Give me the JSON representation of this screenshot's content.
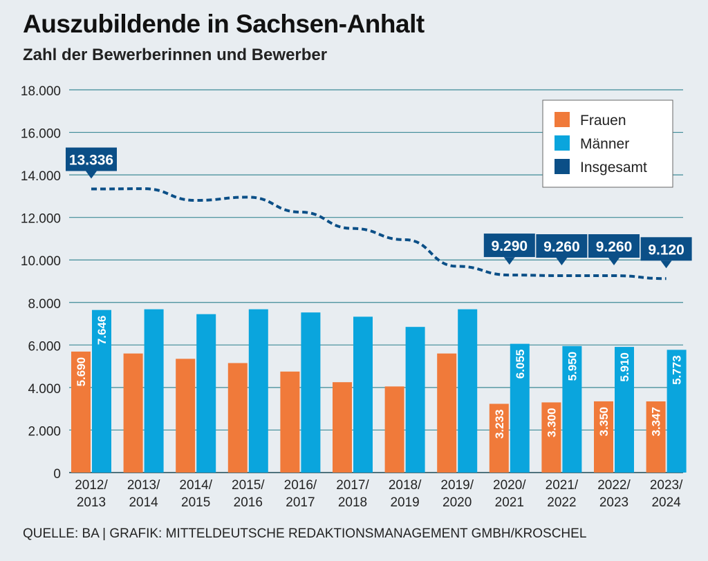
{
  "title": "Auszubildende in Sachsen-Anhalt",
  "subtitle": "Zahl der Bewerberinnen und Bewerber",
  "source": "QUELLE: BA | GRAFIK: MITTELDEUTSCHE REDAKTIONSMANAGEMENT GMBH/KROSCHEL",
  "colors": {
    "frauen": "#f07a3a",
    "maenner": "#0aa5dd",
    "insgesamt": "#0b4f87",
    "grid": "#3c8a96"
  },
  "chart_data": {
    "type": "bar",
    "ylim": [
      0,
      18000
    ],
    "yticks": [
      "0",
      "2.000",
      "4.000",
      "6.000",
      "8.000",
      "10.000",
      "12.000",
      "14.000",
      "16.000",
      "18.000"
    ],
    "categories": [
      [
        "2012/",
        "2013"
      ],
      [
        "2013/",
        "2014"
      ],
      [
        "2014/",
        "2015"
      ],
      [
        "2015/",
        "2016"
      ],
      [
        "2016/",
        "2017"
      ],
      [
        "2017/",
        "2018"
      ],
      [
        "2018/",
        "2019"
      ],
      [
        "2019/",
        "2020"
      ],
      [
        "2020/",
        "2021"
      ],
      [
        "2021/",
        "2022"
      ],
      [
        "2022/",
        "2023"
      ],
      [
        "2023/",
        "2024"
      ]
    ],
    "series": [
      {
        "name": "Frauen",
        "values": [
          5690,
          5600,
          5350,
          5150,
          4750,
          4250,
          4050,
          5600,
          3233,
          3300,
          3350,
          3347
        ]
      },
      {
        "name": "Männer",
        "values": [
          7646,
          7680,
          7450,
          7680,
          7530,
          7330,
          6850,
          7680,
          6055,
          5950,
          5910,
          5773
        ]
      },
      {
        "name": "Insgesamt",
        "type": "line",
        "values": [
          13336,
          13350,
          12800,
          12950,
          12250,
          11480,
          10950,
          9700,
          9290,
          9260,
          9260,
          9120
        ]
      }
    ],
    "bar_labels": {
      "Frauen": [
        "5.690",
        null,
        null,
        null,
        null,
        null,
        null,
        null,
        "3.233",
        "3.300",
        "3.350",
        "3.347"
      ],
      "Männer": [
        "7.646",
        null,
        null,
        null,
        null,
        null,
        null,
        null,
        "6.055",
        "5.950",
        "5.910",
        "5.773"
      ]
    },
    "line_labels": [
      "13.336",
      null,
      null,
      null,
      null,
      null,
      null,
      null,
      "9.290",
      "9.260",
      "9.260",
      "9.120"
    ],
    "legend": [
      "Frauen",
      "Männer",
      "Insgesamt"
    ],
    "legend_position": "top-right"
  }
}
